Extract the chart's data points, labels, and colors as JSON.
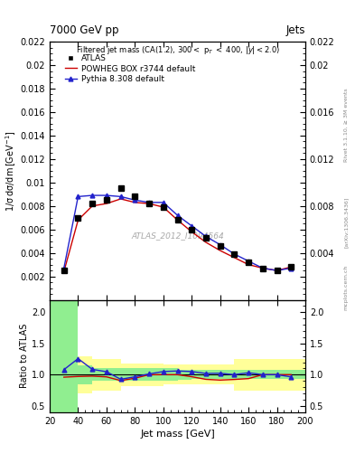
{
  "title_top": "7000 GeV pp",
  "title_top_right": "Jets",
  "watermark": "ATLAS_2012_I1094564",
  "xlabel": "Jet mass [GeV]",
  "ylabel_main": "1/σ dσ/dm [GeV⁻¹]",
  "ylabel_ratio": "Ratio to ATLAS",
  "right_label": "Rivet 3.1.10, ≥ 3M events",
  "arxiv_label": "[arXiv:1306.3436]",
  "mcplots_label": "mcplots.cern.ch",
  "atlas_label": "ATLAS",
  "powheg_label": "POWHEG BOX r3744 default",
  "pythia_label": "Pythia 8.308 default",
  "x_data": [
    30,
    40,
    50,
    60,
    70,
    80,
    90,
    100,
    110,
    120,
    130,
    140,
    150,
    160,
    170,
    180,
    190
  ],
  "atlas_y": [
    0.0025,
    0.007,
    0.0082,
    0.0085,
    0.0095,
    0.0088,
    0.0082,
    0.0079,
    0.0068,
    0.006,
    0.0053,
    0.0046,
    0.0039,
    0.0032,
    0.0027,
    0.0025,
    0.0028
  ],
  "powheg_y": [
    0.0024,
    0.0068,
    0.008,
    0.0082,
    0.0086,
    0.0083,
    0.0082,
    0.0079,
    0.0068,
    0.0058,
    0.0049,
    0.0042,
    0.0036,
    0.003,
    0.0027,
    0.0025,
    0.0028
  ],
  "pythia_y": [
    0.0027,
    0.0088,
    0.0089,
    0.0089,
    0.0088,
    0.0085,
    0.0083,
    0.0083,
    0.0072,
    0.0063,
    0.0054,
    0.0047,
    0.0039,
    0.0033,
    0.0027,
    0.0025,
    0.0027
  ],
  "powheg_ratio": [
    0.96,
    0.971,
    0.976,
    0.965,
    0.905,
    0.943,
    1.0,
    1.0,
    1.0,
    0.967,
    0.925,
    0.913,
    0.923,
    0.937,
    1.0,
    1.0,
    1.0
  ],
  "pythia_ratio": [
    1.08,
    1.257,
    1.085,
    1.047,
    0.926,
    0.966,
    1.012,
    1.05,
    1.059,
    1.05,
    1.019,
    1.022,
    1.0,
    1.031,
    1.0,
    1.0,
    0.964
  ],
  "x_bins": [
    20,
    30,
    40,
    50,
    60,
    70,
    80,
    90,
    100,
    110,
    120,
    130,
    140,
    150,
    160,
    170,
    180,
    200
  ],
  "green_lo": [
    0.0,
    0.0,
    0.85,
    0.9,
    0.9,
    0.9,
    0.9,
    0.9,
    0.9,
    0.92,
    0.93,
    0.93,
    0.93,
    0.93,
    0.93,
    0.93,
    0.93
  ],
  "green_hi": [
    3.0,
    3.0,
    1.15,
    1.1,
    1.1,
    1.1,
    1.1,
    1.1,
    1.1,
    1.08,
    1.07,
    1.07,
    1.07,
    1.07,
    1.07,
    1.07,
    1.07
  ],
  "yellow_lo": [
    0.0,
    0.0,
    0.7,
    0.75,
    0.75,
    0.82,
    0.82,
    0.82,
    0.84,
    0.84,
    0.84,
    0.84,
    0.84,
    0.75,
    0.75,
    0.75,
    0.75
  ],
  "yellow_hi": [
    3.0,
    3.0,
    1.3,
    1.25,
    1.25,
    1.18,
    1.18,
    1.18,
    1.16,
    1.16,
    1.16,
    1.16,
    1.16,
    1.25,
    1.25,
    1.25,
    1.25
  ],
  "ylim_main": [
    0,
    0.022
  ],
  "ylim_ratio": [
    0.4,
    2.2
  ],
  "xlim": [
    20,
    200
  ],
  "yticks_main": [
    0.002,
    0.004,
    0.006,
    0.008,
    0.01,
    0.012,
    0.014,
    0.016,
    0.018,
    0.02,
    0.022
  ],
  "ytick_labels_main": [
    "0.002",
    "0.004",
    "0.006",
    "0.008",
    "0.01",
    "0.012",
    "0.014",
    "0.016",
    "0.018",
    "0.02",
    "0.022"
  ],
  "ytick_labels_main_r": [
    "",
    "0.004",
    "",
    "0.008",
    "",
    "0.012",
    "",
    "0.016",
    "",
    "0.02",
    "0.022"
  ],
  "yticks_ratio": [
    0.5,
    1.0,
    1.5,
    2.0
  ],
  "xticks": [
    20,
    40,
    60,
    80,
    100,
    120,
    140,
    160,
    180,
    200
  ],
  "atlas_color": "#000000",
  "powheg_color": "#cc0000",
  "pythia_color": "#2222cc",
  "green_color": "#90ee90",
  "yellow_color": "#ffff99",
  "bg_color": "#ffffff"
}
